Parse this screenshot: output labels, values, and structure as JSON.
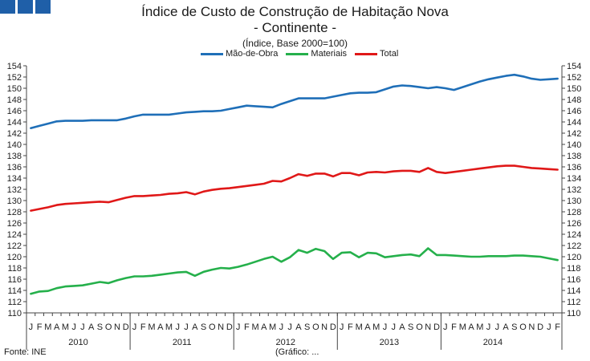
{
  "header": {
    "title": "Índice de Custo de Construção de Habitação Nova",
    "subtitle": "- Continente -",
    "unit": "(Índice, Base 2000=100)"
  },
  "colors": {
    "maodeobra": "#1f6fb8",
    "materiais": "#25b04b",
    "total": "#e01818",
    "logo": "#1f5fa8"
  },
  "footer": {
    "source": "Fonte: INE",
    "note": "(Gráfico: ..."
  },
  "chart_data": {
    "type": "line",
    "title": "Índice de Custo de Construção de Habitação Nova - Continente -",
    "ylabel": "(Índice, Base 2000=100)",
    "ylim": [
      110,
      154
    ],
    "yticks": [
      110,
      112,
      114,
      116,
      118,
      120,
      122,
      124,
      126,
      128,
      130,
      132,
      134,
      136,
      138,
      140,
      142,
      144,
      146,
      148,
      150,
      152,
      154
    ],
    "grid": false,
    "legend_position": "top",
    "month_labels": [
      "J",
      "F",
      "M",
      "A",
      "M",
      "J",
      "J",
      "A",
      "S",
      "O",
      "N",
      "D"
    ],
    "years": [
      "2010",
      "2011",
      "2012",
      "2013",
      "2014"
    ],
    "series": [
      {
        "name": "Mão-de-Obra",
        "color_key": "maodeobra",
        "values": [
          142.9,
          143.3,
          143.7,
          144.1,
          144.2,
          144.2,
          144.2,
          144.3,
          144.3,
          144.3,
          144.3,
          144.6,
          145.0,
          145.3,
          145.3,
          145.3,
          145.3,
          145.5,
          145.7,
          145.8,
          145.9,
          145.9,
          146.0,
          146.3,
          146.6,
          146.9,
          146.8,
          146.7,
          146.6,
          147.2,
          147.7,
          148.2,
          148.2,
          148.2,
          148.2,
          148.5,
          148.8,
          149.1,
          149.2,
          149.2,
          149.3,
          149.8,
          150.3,
          150.5,
          150.4,
          150.2,
          150.0,
          150.2,
          150.0,
          149.7,
          150.2,
          150.7,
          151.2,
          151.6,
          151.9,
          152.2,
          152.4,
          152.1,
          151.7,
          151.5,
          151.6,
          151.7
        ]
      },
      {
        "name": "Materiais",
        "color_key": "materiais",
        "values": [
          113.4,
          113.8,
          113.9,
          114.4,
          114.7,
          114.8,
          114.9,
          115.2,
          115.5,
          115.3,
          115.8,
          116.2,
          116.5,
          116.5,
          116.6,
          116.8,
          117.0,
          117.2,
          117.3,
          116.6,
          117.3,
          117.7,
          118.0,
          117.9,
          118.2,
          118.6,
          119.1,
          119.6,
          120.0,
          119.1,
          119.9,
          121.2,
          120.7,
          121.4,
          121.0,
          119.6,
          120.7,
          120.8,
          119.9,
          120.7,
          120.6,
          119.9,
          120.1,
          120.3,
          120.4,
          120.1,
          121.5,
          120.3,
          120.3,
          120.2,
          120.1,
          120.0,
          120.0,
          120.1,
          120.1,
          120.1,
          120.2,
          120.2,
          120.1,
          120.0,
          119.7,
          119.4
        ]
      },
      {
        "name": "Total",
        "color_key": "total",
        "values": [
          128.2,
          128.5,
          128.8,
          129.2,
          129.4,
          129.5,
          129.6,
          129.7,
          129.8,
          129.7,
          130.1,
          130.5,
          130.8,
          130.8,
          130.9,
          131.0,
          131.2,
          131.3,
          131.5,
          131.1,
          131.6,
          131.9,
          132.1,
          132.2,
          132.4,
          132.6,
          132.8,
          133.0,
          133.5,
          133.4,
          134.0,
          134.7,
          134.4,
          134.8,
          134.8,
          134.3,
          134.9,
          134.9,
          134.5,
          135.0,
          135.1,
          135.0,
          135.2,
          135.3,
          135.3,
          135.1,
          135.8,
          135.1,
          134.9,
          135.1,
          135.3,
          135.5,
          135.7,
          135.9,
          136.1,
          136.2,
          136.2,
          136.0,
          135.8,
          135.7,
          135.6,
          135.5
        ]
      }
    ]
  }
}
